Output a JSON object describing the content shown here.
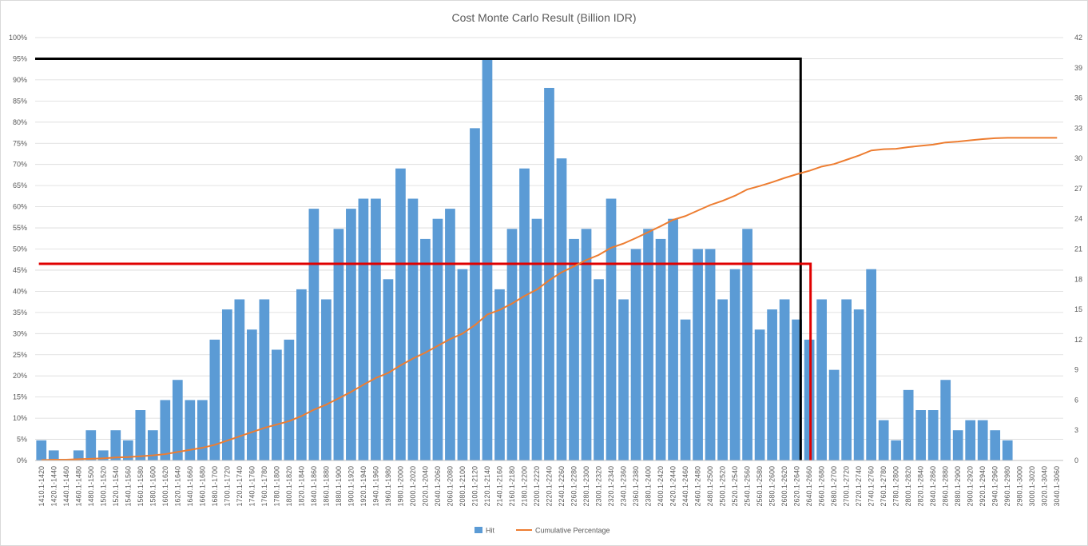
{
  "chart_data": {
    "type": "bar",
    "title": "Cost Monte Carlo Result (Billion IDR)",
    "categories": [
      "1410.1-1420",
      "1420.1-1440",
      "1440.1-1460",
      "1460.1-1480",
      "1480.1-1500",
      "1500.1-1520",
      "1520.1-1540",
      "1540.1-1560",
      "1560.1-1580",
      "1580.1-1600",
      "1600.1-1620",
      "1620.1-1640",
      "1640.1-1660",
      "1660.1-1680",
      "1680.1-1700",
      "1700.1-1720",
      "1720.1-1740",
      "1740.1-1760",
      "1760.1-1780",
      "1780.1-1800",
      "1800.1-1820",
      "1820.1-1840",
      "1840.1-1860",
      "1860.1-1880",
      "1880.1-1900",
      "1900.1-1920",
      "1920.1-1940",
      "1940.1-1960",
      "1960.1-1980",
      "1980.1-2000",
      "2000.1-2020",
      "2020.1-2040",
      "2040.1-2060",
      "2060.1-2080",
      "2080.1-2100",
      "2100.1-2120",
      "2120.1-2140",
      "2140.1-2160",
      "2160.1-2180",
      "2180.1-2200",
      "2200.1-2220",
      "2220.1-2240",
      "2240.1-2260",
      "2260.1-2280",
      "2280.1-2300",
      "2300.1-2320",
      "2320.1-2340",
      "2340.1-2360",
      "2360.1-2380",
      "2380.1-2400",
      "2400.1-2420",
      "2420.1-2440",
      "2440.1-2460",
      "2460.1-2480",
      "2480.1-2500",
      "2500.1-2520",
      "2520.1-2540",
      "2540.1-2560",
      "2560.1-2580",
      "2580.1-2600",
      "2600.1-2620",
      "2620.1-2640",
      "2640.1-2660",
      "2660.1-2680",
      "2680.1-2700",
      "2700.1-2720",
      "2720.1-2740",
      "2740.1-2760",
      "2760.1-2780",
      "2780.1-2800",
      "2800.1-2820",
      "2820.1-2840",
      "2840.1-2860",
      "2860.1-2880",
      "2880.1-2900",
      "2900.1-2920",
      "2920.1-2940",
      "2940.1-2960",
      "2960.1-2980",
      "2980.1-3000",
      "3000.1-3020",
      "3020.1-3040",
      "3040.1-3060"
    ],
    "series": [
      {
        "name": "Hit",
        "axis": "secondary",
        "color": "#5b9bd5",
        "values": [
          2,
          1,
          0,
          1,
          3,
          1,
          3,
          2,
          5,
          3,
          6,
          8,
          6,
          6,
          12,
          15,
          16,
          13,
          16,
          11,
          12,
          17,
          25,
          16,
          23,
          25,
          26,
          26,
          18,
          29,
          26,
          22,
          24,
          25,
          19,
          33,
          40,
          17,
          23,
          29,
          24,
          37,
          30,
          22,
          23,
          18,
          26,
          16,
          21,
          23,
          22,
          24,
          14,
          21,
          21,
          16,
          19,
          23,
          13,
          15,
          16,
          14,
          12,
          16,
          9,
          16,
          15,
          19,
          4,
          2,
          7,
          5,
          5,
          8,
          3,
          4,
          4,
          3,
          2,
          0,
          0,
          0,
          0
        ]
      },
      {
        "name": "Cumulative Percentage",
        "axis": "primary",
        "color": "#ed7d31",
        "values": [
          0.001,
          0.002,
          0.002,
          0.003,
          0.004,
          0.005,
          0.007,
          0.008,
          0.01,
          0.012,
          0.015,
          0.02,
          0.025,
          0.03,
          0.037,
          0.047,
          0.057,
          0.067,
          0.077,
          0.085,
          0.093,
          0.105,
          0.12,
          0.132,
          0.147,
          0.162,
          0.179,
          0.195,
          0.207,
          0.225,
          0.241,
          0.255,
          0.271,
          0.287,
          0.3,
          0.32,
          0.345,
          0.356,
          0.371,
          0.389,
          0.404,
          0.426,
          0.445,
          0.459,
          0.474,
          0.486,
          0.503,
          0.513,
          0.526,
          0.54,
          0.554,
          0.569,
          0.578,
          0.591,
          0.604,
          0.614,
          0.626,
          0.641,
          0.649,
          0.658,
          0.668,
          0.677,
          0.685,
          0.695,
          0.701,
          0.711,
          0.721,
          0.733,
          0.736,
          0.737,
          0.741,
          0.744,
          0.747,
          0.752,
          0.754,
          0.757,
          0.76,
          0.762,
          0.763,
          0.763,
          0.763,
          0.763,
          0.763
        ]
      }
    ],
    "y_primary": {
      "min": 0,
      "max": 1.0,
      "step": 0.05,
      "format": "percent"
    },
    "y_secondary": {
      "min": 0,
      "max": 42,
      "step": 3
    },
    "reference_lines": [
      {
        "color": "#000000",
        "level": 0.95,
        "x_start_category": 0,
        "x_end_category": 61.8
      },
      {
        "color": "#e00000",
        "level": 0.465,
        "x_start_category": 0.3,
        "x_end_category": 62.6
      }
    ],
    "legend": {
      "position": "bottom"
    },
    "grid": true
  }
}
